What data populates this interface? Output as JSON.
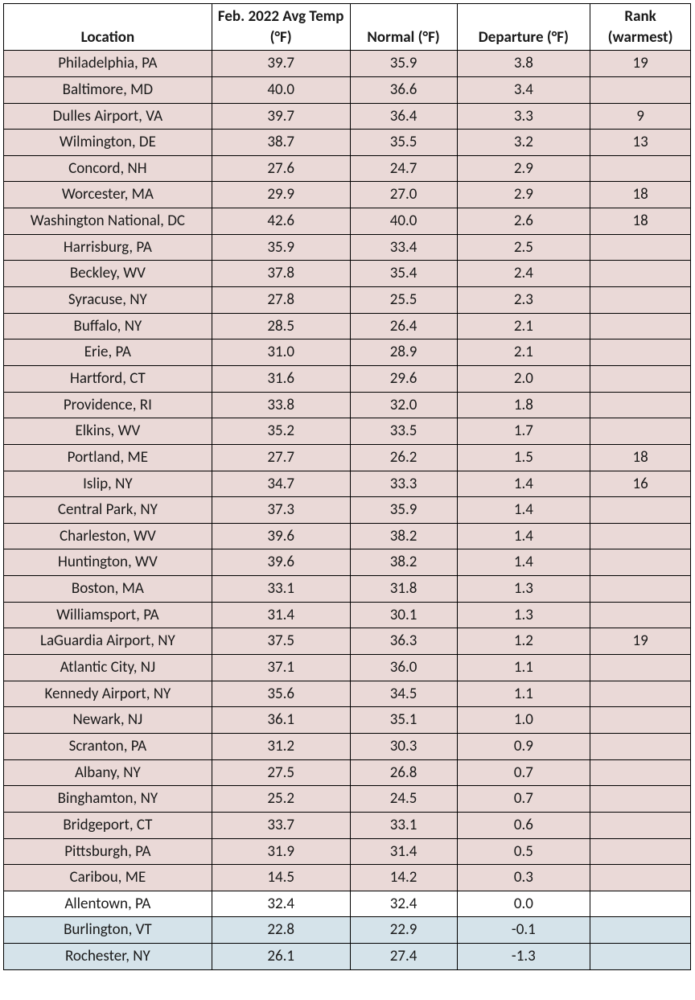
{
  "table": {
    "columns": [
      {
        "key": "location",
        "header": "Location",
        "class": "col-location"
      },
      {
        "key": "avg",
        "header": "Feb. 2022 Avg Temp (°F)",
        "class": "col-avg"
      },
      {
        "key": "normal",
        "header": "Normal (°F)",
        "class": "col-normal"
      },
      {
        "key": "departure",
        "header": "Departure (°F)",
        "class": "col-departure"
      },
      {
        "key": "rank",
        "header": "Rank (warmest)",
        "class": "col-rank"
      }
    ],
    "row_colors": {
      "warm": "#ead9d7",
      "neutral": "#ffffff",
      "cool": "#d5e3ea"
    },
    "border_color": "#000000",
    "text_color": "#1a1a1a",
    "font_size": 19,
    "rows": [
      {
        "location": "Philadelphia, PA",
        "avg": "39.7",
        "normal": "35.9",
        "departure": "3.8",
        "rank": "19",
        "tone": "warm"
      },
      {
        "location": "Baltimore, MD",
        "avg": "40.0",
        "normal": "36.6",
        "departure": "3.4",
        "rank": "",
        "tone": "warm"
      },
      {
        "location": "Dulles Airport, VA",
        "avg": "39.7",
        "normal": "36.4",
        "departure": "3.3",
        "rank": "9",
        "tone": "warm"
      },
      {
        "location": "Wilmington, DE",
        "avg": "38.7",
        "normal": "35.5",
        "departure": "3.2",
        "rank": "13",
        "tone": "warm"
      },
      {
        "location": "Concord, NH",
        "avg": "27.6",
        "normal": "24.7",
        "departure": "2.9",
        "rank": "",
        "tone": "warm"
      },
      {
        "location": "Worcester, MA",
        "avg": "29.9",
        "normal": "27.0",
        "departure": "2.9",
        "rank": "18",
        "tone": "warm"
      },
      {
        "location": "Washington National, DC",
        "avg": "42.6",
        "normal": "40.0",
        "departure": "2.6",
        "rank": "18",
        "tone": "warm"
      },
      {
        "location": "Harrisburg, PA",
        "avg": "35.9",
        "normal": "33.4",
        "departure": "2.5",
        "rank": "",
        "tone": "warm"
      },
      {
        "location": "Beckley, WV",
        "avg": "37.8",
        "normal": "35.4",
        "departure": "2.4",
        "rank": "",
        "tone": "warm"
      },
      {
        "location": "Syracuse, NY",
        "avg": "27.8",
        "normal": "25.5",
        "departure": "2.3",
        "rank": "",
        "tone": "warm"
      },
      {
        "location": "Buffalo, NY",
        "avg": "28.5",
        "normal": "26.4",
        "departure": "2.1",
        "rank": "",
        "tone": "warm"
      },
      {
        "location": "Erie, PA",
        "avg": "31.0",
        "normal": "28.9",
        "departure": "2.1",
        "rank": "",
        "tone": "warm"
      },
      {
        "location": "Hartford, CT",
        "avg": "31.6",
        "normal": "29.6",
        "departure": "2.0",
        "rank": "",
        "tone": "warm"
      },
      {
        "location": "Providence, RI",
        "avg": "33.8",
        "normal": "32.0",
        "departure": "1.8",
        "rank": "",
        "tone": "warm"
      },
      {
        "location": "Elkins, WV",
        "avg": "35.2",
        "normal": "33.5",
        "departure": "1.7",
        "rank": "",
        "tone": "warm"
      },
      {
        "location": "Portland, ME",
        "avg": "27.7",
        "normal": "26.2",
        "departure": "1.5",
        "rank": "18",
        "tone": "warm"
      },
      {
        "location": "Islip, NY",
        "avg": "34.7",
        "normal": "33.3",
        "departure": "1.4",
        "rank": "16",
        "tone": "warm"
      },
      {
        "location": "Central Park, NY",
        "avg": "37.3",
        "normal": "35.9",
        "departure": "1.4",
        "rank": "",
        "tone": "warm"
      },
      {
        "location": "Charleston, WV",
        "avg": "39.6",
        "normal": "38.2",
        "departure": "1.4",
        "rank": "",
        "tone": "warm"
      },
      {
        "location": "Huntington, WV",
        "avg": "39.6",
        "normal": "38.2",
        "departure": "1.4",
        "rank": "",
        "tone": "warm"
      },
      {
        "location": "Boston, MA",
        "avg": "33.1",
        "normal": "31.8",
        "departure": "1.3",
        "rank": "",
        "tone": "warm"
      },
      {
        "location": "Williamsport, PA",
        "avg": "31.4",
        "normal": "30.1",
        "departure": "1.3",
        "rank": "",
        "tone": "warm"
      },
      {
        "location": "LaGuardia Airport, NY",
        "avg": "37.5",
        "normal": "36.3",
        "departure": "1.2",
        "rank": "19",
        "tone": "warm"
      },
      {
        "location": "Atlantic City, NJ",
        "avg": "37.1",
        "normal": "36.0",
        "departure": "1.1",
        "rank": "",
        "tone": "warm"
      },
      {
        "location": "Kennedy Airport, NY",
        "avg": "35.6",
        "normal": "34.5",
        "departure": "1.1",
        "rank": "",
        "tone": "warm"
      },
      {
        "location": "Newark, NJ",
        "avg": "36.1",
        "normal": "35.1",
        "departure": "1.0",
        "rank": "",
        "tone": "warm"
      },
      {
        "location": "Scranton, PA",
        "avg": "31.2",
        "normal": "30.3",
        "departure": "0.9",
        "rank": "",
        "tone": "warm"
      },
      {
        "location": "Albany, NY",
        "avg": "27.5",
        "normal": "26.8",
        "departure": "0.7",
        "rank": "",
        "tone": "warm"
      },
      {
        "location": "Binghamton, NY",
        "avg": "25.2",
        "normal": "24.5",
        "departure": "0.7",
        "rank": "",
        "tone": "warm"
      },
      {
        "location": "Bridgeport, CT",
        "avg": "33.7",
        "normal": "33.1",
        "departure": "0.6",
        "rank": "",
        "tone": "warm"
      },
      {
        "location": "Pittsburgh, PA",
        "avg": "31.9",
        "normal": "31.4",
        "departure": "0.5",
        "rank": "",
        "tone": "warm"
      },
      {
        "location": "Caribou, ME",
        "avg": "14.5",
        "normal": "14.2",
        "departure": "0.3",
        "rank": "",
        "tone": "warm"
      },
      {
        "location": "Allentown, PA",
        "avg": "32.4",
        "normal": "32.4",
        "departure": "0.0",
        "rank": "",
        "tone": "neutral"
      },
      {
        "location": "Burlington, VT",
        "avg": "22.8",
        "normal": "22.9",
        "departure": "-0.1",
        "rank": "",
        "tone": "cool"
      },
      {
        "location": "Rochester, NY",
        "avg": "26.1",
        "normal": "27.4",
        "departure": "-1.3",
        "rank": "",
        "tone": "cool"
      }
    ]
  }
}
